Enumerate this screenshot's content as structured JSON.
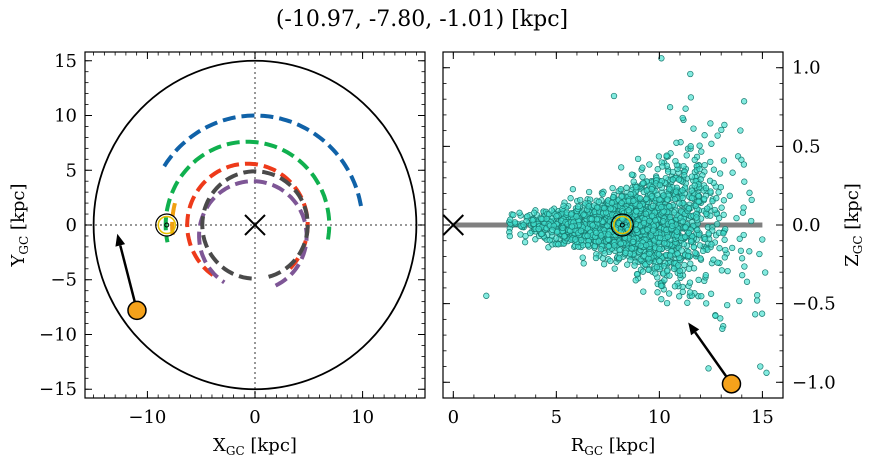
{
  "suptitle": "(-10.97, -7.80, -1.01) [kpc]",
  "chart_data": [
    {
      "type": "scatter",
      "panel": "left",
      "xlabel": "X$_{GC}$ [kpc]",
      "xlabel_main": "X",
      "xlabel_sub": "GC",
      "xlabel_unit": " [kpc]",
      "ylabel_main": "Y",
      "ylabel_sub": "GC",
      "ylabel_unit": " [kpc]",
      "xlim": [
        -15.8,
        15.8
      ],
      "ylim": [
        -15.8,
        15.8
      ],
      "xticks": [
        -10,
        0,
        10
      ],
      "xtick_labels": [
        "−10",
        "0",
        "10"
      ],
      "yticks": [
        -15,
        -10,
        -5,
        0,
        5,
        10,
        15
      ],
      "ytick_labels": [
        "−15",
        "−10",
        "−5",
        "0",
        "5",
        "10",
        "15"
      ],
      "boundary_circle_radius": 15,
      "galactic_center": [
        0,
        0
      ],
      "sun_position": [
        -8.2,
        0
      ],
      "object_position": [
        -10.97,
        -7.8
      ],
      "arrow_to": [
        -12.8,
        -0.8
      ],
      "spiral_arms": [
        {
          "color": "#1062a8",
          "center": [
            0,
            0
          ],
          "radius": 10.0,
          "angles_deg": [
            10,
            150
          ]
        },
        {
          "color": "#10b04e",
          "center": [
            -0.7,
            0
          ],
          "radius": 7.6,
          "angles_deg": [
            -10,
            192
          ]
        },
        {
          "color": "#f0a010",
          "center": [
            0,
            0
          ],
          "radius": 7.7,
          "angles_deg": [
            165,
            190
          ]
        },
        {
          "color": "#ee3a1a",
          "center": [
            -0.7,
            0
          ],
          "radius": 5.6,
          "angles_deg": [
            -45,
            235
          ]
        },
        {
          "color": "#7e5696",
          "center": [
            -0.2,
            -1.0
          ],
          "radius": 5.0,
          "angles_deg": [
            -65,
            238
          ]
        },
        {
          "color": "#4a4a4a",
          "center": [
            0,
            0
          ],
          "radius": 4.9,
          "angles_deg": [
            -75,
            270
          ]
        }
      ]
    },
    {
      "type": "scatter",
      "panel": "right",
      "xlabel_main": "R",
      "xlabel_sub": "GC",
      "xlabel_unit": " [kpc]",
      "ylabel_main": "Z",
      "ylabel_sub": "GC",
      "ylabel_unit": " [kpc]",
      "xlim": [
        -0.5,
        16.0
      ],
      "ylim": [
        -1.1,
        1.1
      ],
      "xticks": [
        0,
        5,
        10,
        15
      ],
      "xtick_labels": [
        "0",
        "5",
        "10",
        "15"
      ],
      "yticks": [
        -1.0,
        -0.5,
        0.0,
        0.5,
        1.0
      ],
      "ytick_labels": [
        "−1.0",
        "−0.5",
        "0.0",
        "0.5",
        "1.0"
      ],
      "disk_line": {
        "x": [
          0,
          15
        ],
        "y": 0,
        "color": "#808080"
      },
      "galactic_center": [
        0,
        0
      ],
      "sun_position": [
        8.2,
        0
      ],
      "object_position": [
        13.5,
        -1.01
      ],
      "arrow_to": [
        11.4,
        -0.62
      ],
      "point_cloud": {
        "count": 2200,
        "color": "#40e0d0",
        "edgecolor": "#1a7a70",
        "r_center": 8.6,
        "r_spread": 2.2,
        "z_spread_at_r": [
          [
            3,
            0.04
          ],
          [
            8,
            0.09
          ],
          [
            13,
            0.3
          ],
          [
            15,
            0.45
          ]
        ]
      },
      "outlier_points": [
        {
          "x": 10.1,
          "y": 1.06
        },
        {
          "x": 11.5,
          "y": 0.96
        },
        {
          "x": 7.8,
          "y": 0.82
        },
        {
          "x": 1.6,
          "y": -0.45
        },
        {
          "x": 14.9,
          "y": -0.9
        },
        {
          "x": 15.2,
          "y": -0.94
        }
      ]
    }
  ]
}
